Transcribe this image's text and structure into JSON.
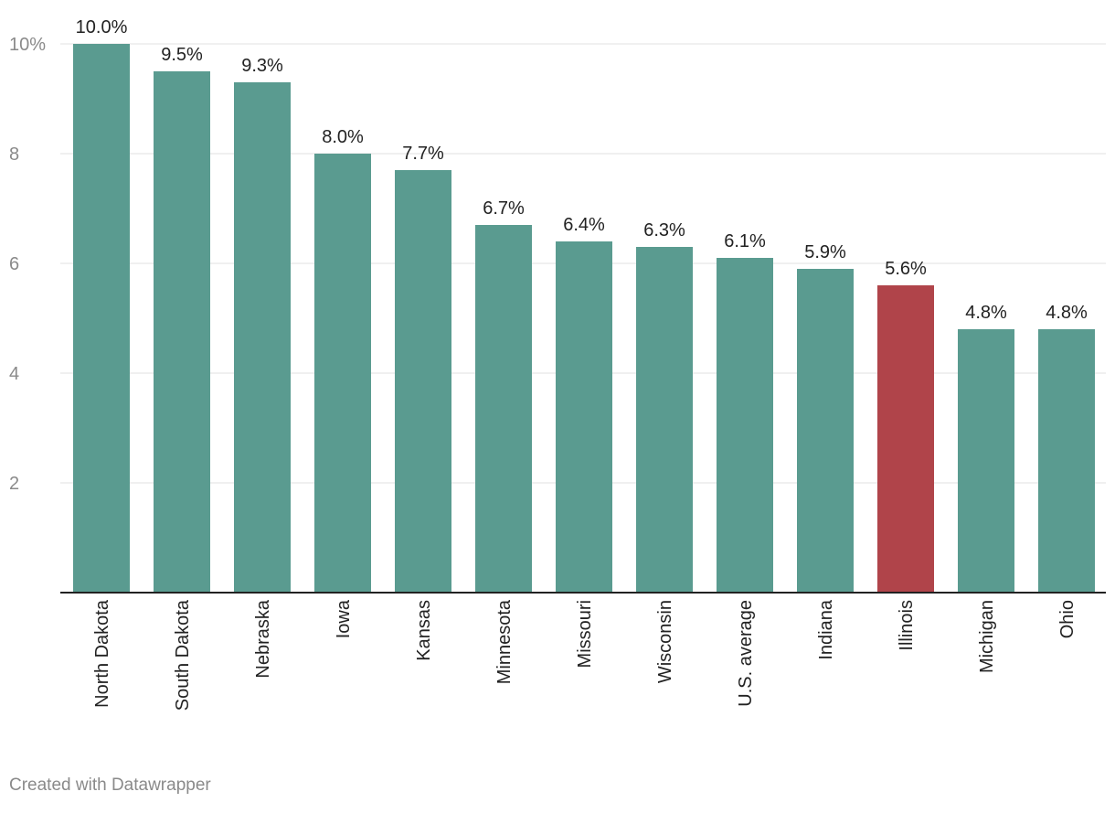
{
  "chart_data": {
    "type": "bar",
    "categories": [
      "North Dakota",
      "South Dakota",
      "Nebraska",
      "Iowa",
      "Kansas",
      "Minnesota",
      "Missouri",
      "Wisconsin",
      "U.S. average",
      "Indiana",
      "Illinois",
      "Michigan",
      "Ohio"
    ],
    "values": [
      10.0,
      9.5,
      9.3,
      8.0,
      7.7,
      6.7,
      6.4,
      6.3,
      6.1,
      5.9,
      5.6,
      4.8,
      4.8
    ],
    "data_labels": [
      "10.0%",
      "9.5%",
      "9.3%",
      "8.0%",
      "7.7%",
      "6.7%",
      "6.4%",
      "6.3%",
      "6.1%",
      "5.9%",
      "5.6%",
      "4.8%",
      "4.8%"
    ],
    "highlight_category": "Illinois",
    "ylim": [
      0,
      10
    ],
    "yticks": [
      2,
      4,
      6,
      8,
      10
    ],
    "ytick_labels": [
      "2",
      "4",
      "6",
      "8",
      "10%"
    ],
    "grid": true,
    "colors": {
      "bar": "#5a9b90",
      "highlight": "#b0444a",
      "grid": "#e0e0e0",
      "axis": "#222222"
    }
  },
  "footer": {
    "credit": "Created with Datawrapper"
  }
}
